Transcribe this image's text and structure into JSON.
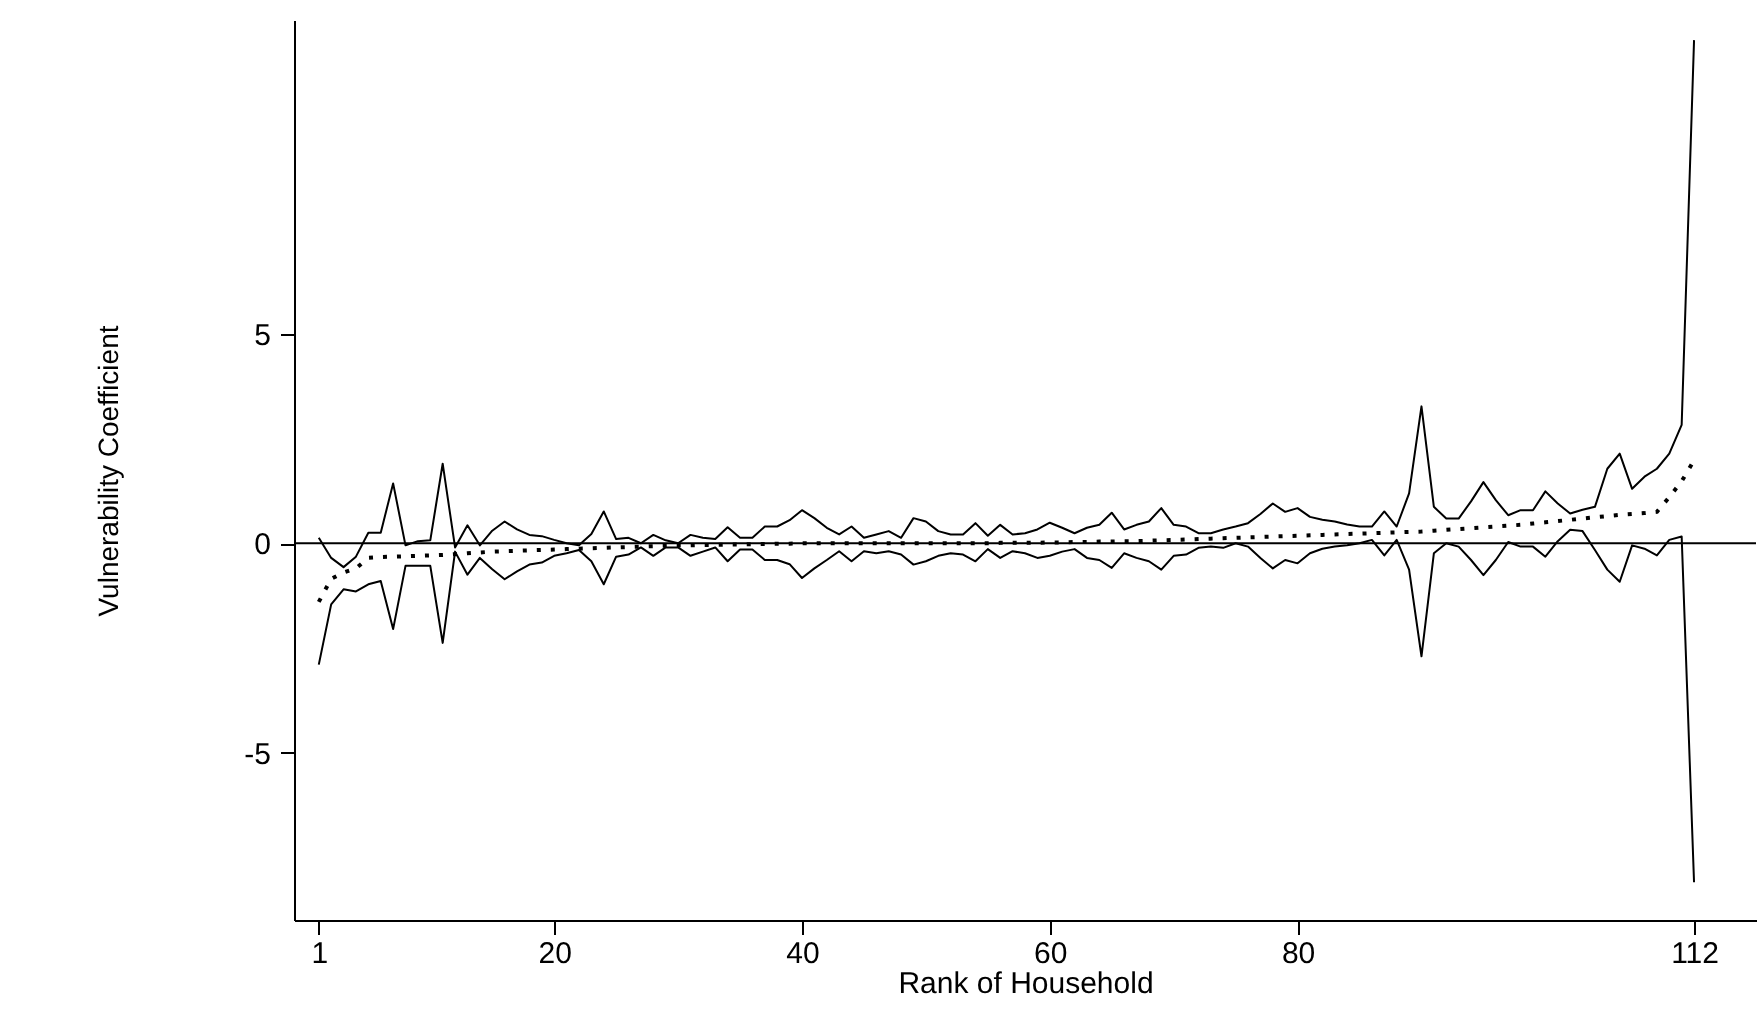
{
  "chart_data": {
    "type": "line",
    "xlabel": "Rank of Household",
    "ylabel": "Vulnerability Coefficient",
    "x": [
      1,
      2,
      3,
      4,
      5,
      6,
      7,
      8,
      9,
      10,
      11,
      12,
      13,
      14,
      15,
      16,
      17,
      18,
      19,
      20,
      21,
      22,
      23,
      24,
      25,
      26,
      27,
      28,
      29,
      30,
      31,
      32,
      33,
      34,
      35,
      36,
      37,
      38,
      39,
      40,
      41,
      42,
      43,
      44,
      45,
      46,
      47,
      48,
      49,
      50,
      51,
      52,
      53,
      54,
      55,
      56,
      57,
      58,
      59,
      60,
      61,
      62,
      63,
      64,
      65,
      66,
      67,
      68,
      69,
      70,
      71,
      72,
      73,
      74,
      75,
      76,
      77,
      78,
      79,
      80,
      81,
      82,
      83,
      84,
      85,
      86,
      87,
      88,
      89,
      90,
      91,
      92,
      93,
      94,
      95,
      96,
      97,
      98,
      99,
      100,
      101,
      102,
      103,
      104,
      105,
      106,
      107,
      108,
      109,
      110,
      111,
      112
    ],
    "series": [
      {
        "color": "#000000",
        "line_style": "solid",
        "values": [
          0.13,
          -0.35,
          -0.57,
          -0.32,
          0.25,
          0.25,
          1.43,
          -0.05,
          0.05,
          0.07,
          1.9,
          -0.1,
          0.43,
          -0.05,
          0.3,
          0.52,
          0.33,
          0.2,
          0.17,
          0.08,
          0,
          -0.05,
          0.22,
          0.76,
          0.1,
          0.13,
          0,
          0.2,
          0.07,
          0,
          0.2,
          0.13,
          0.1,
          0.38,
          0.13,
          0.13,
          0.4,
          0.4,
          0.55,
          0.79,
          0.6,
          0.37,
          0.21,
          0.4,
          0.13,
          0.21,
          0.29,
          0.13,
          0.6,
          0.52,
          0.29,
          0.21,
          0.21,
          0.48,
          0.18,
          0.44,
          0.21,
          0.24,
          0.33,
          0.49,
          0.37,
          0.24,
          0.37,
          0.44,
          0.73,
          0.33,
          0.44,
          0.52,
          0.84,
          0.44,
          0.4,
          0.24,
          0.24,
          0.33,
          0.4,
          0.48,
          0.7,
          0.95,
          0.75,
          0.84,
          0.63,
          0.56,
          0.52,
          0.45,
          0.4,
          0.4,
          0.76,
          0.4,
          1.19,
          3.27,
          0.87,
          0.59,
          0.59,
          1.0,
          1.46,
          1.03,
          0.67,
          0.79,
          0.79,
          1.24,
          0.95,
          0.71,
          0.8,
          0.87,
          1.78,
          2.14,
          1.3,
          1.59,
          1.78,
          2.14,
          2.83,
          12.02
        ]
      },
      {
        "color": "#000000",
        "line_style": "solid",
        "values": [
          -2.9,
          -1.46,
          -1.1,
          -1.15,
          -0.98,
          -0.9,
          -2.05,
          -0.54,
          -0.54,
          -0.54,
          -2.38,
          -0.2,
          -0.75,
          -0.35,
          -0.62,
          -0.86,
          -0.67,
          -0.51,
          -0.46,
          -0.3,
          -0.24,
          -0.16,
          -0.43,
          -0.98,
          -0.32,
          -0.27,
          -0.1,
          -0.3,
          -0.1,
          -0.1,
          -0.3,
          -0.2,
          -0.1,
          -0.43,
          -0.15,
          -0.15,
          -0.4,
          -0.4,
          -0.5,
          -0.83,
          -0.6,
          -0.4,
          -0.19,
          -0.43,
          -0.19,
          -0.24,
          -0.19,
          -0.27,
          -0.51,
          -0.43,
          -0.3,
          -0.24,
          -0.27,
          -0.43,
          -0.14,
          -0.35,
          -0.19,
          -0.24,
          -0.35,
          -0.3,
          -0.2,
          -0.14,
          -0.35,
          -0.4,
          -0.59,
          -0.24,
          -0.35,
          -0.43,
          -0.63,
          -0.3,
          -0.27,
          -0.11,
          -0.08,
          -0.11,
          0,
          -0.08,
          -0.35,
          -0.6,
          -0.4,
          -0.48,
          -0.24,
          -0.13,
          -0.08,
          -0.05,
          0,
          0.08,
          -0.29,
          0.08,
          -0.63,
          -2.7,
          -0.24,
          0,
          -0.08,
          -0.4,
          -0.76,
          -0.4,
          0.03,
          -0.08,
          -0.08,
          -0.32,
          0.05,
          0.32,
          0.29,
          -0.16,
          -0.63,
          -0.92,
          -0.05,
          -0.13,
          -0.29,
          0.08,
          0.16,
          -8.1
        ]
      },
      {
        "color": "#000000",
        "line_style": "dotted",
        "values": [
          -1.4,
          -0.85,
          -0.7,
          -0.6,
          -0.35,
          -0.33,
          -0.32,
          -0.31,
          -0.3,
          -0.29,
          -0.28,
          -0.26,
          -0.24,
          -0.22,
          -0.2,
          -0.19,
          -0.18,
          -0.17,
          -0.16,
          -0.15,
          -0.14,
          -0.13,
          -0.12,
          -0.11,
          -0.1,
          -0.09,
          -0.08,
          -0.07,
          -0.06,
          -0.05,
          -0.05,
          -0.04,
          -0.04,
          -0.03,
          -0.03,
          -0.02,
          -0.02,
          -0.01,
          -0.01,
          0,
          0,
          0,
          0,
          0,
          0,
          0,
          0,
          0,
          0,
          0,
          0,
          0,
          0,
          0,
          0,
          0.01,
          0.01,
          0.01,
          0.01,
          0.02,
          0.02,
          0.03,
          0.03,
          0.04,
          0.04,
          0.05,
          0.05,
          0.06,
          0.07,
          0.08,
          0.09,
          0.1,
          0.11,
          0.12,
          0.13,
          0.14,
          0.15,
          0.16,
          0.17,
          0.18,
          0.19,
          0.2,
          0.21,
          0.22,
          0.23,
          0.24,
          0.25,
          0.26,
          0.27,
          0.28,
          0.3,
          0.32,
          0.34,
          0.36,
          0.38,
          0.4,
          0.42,
          0.44,
          0.47,
          0.5,
          0.53,
          0.56,
          0.59,
          0.62,
          0.65,
          0.68,
          0.7,
          0.72,
          0.75,
          1.1,
          1.48,
          1.98
        ]
      }
    ],
    "xlim": [
      -1,
      117
    ],
    "xticks": [
      1,
      20,
      40,
      60,
      80,
      112
    ],
    "ylim": [
      -9,
      12.5
    ],
    "yticks": [
      -5,
      0,
      5
    ],
    "ref_lines": [
      {
        "axis": "y",
        "value": 0,
        "color": "#000000"
      }
    ],
    "grid": false,
    "marker": "none"
  }
}
